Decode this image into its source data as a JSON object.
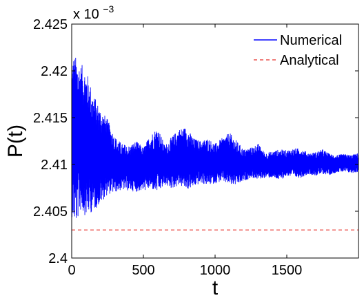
{
  "chart_data": {
    "type": "line",
    "title": "",
    "xlabel": "t",
    "ylabel": "P(t)",
    "xlim": [
      0,
      2000
    ],
    "ylim": [
      2.4,
      2.425
    ],
    "x_ticks": [
      0,
      500,
      1000,
      1500
    ],
    "y_ticks": [
      2.4,
      2.405,
      2.41,
      2.415,
      2.42,
      2.425
    ],
    "y_tick_labels": [
      "2.4",
      "2.405",
      "2.41",
      "2.415",
      "2.42",
      "2.425"
    ],
    "y_scale_prefix": "x 10",
    "y_scale_exponent": "−3",
    "grid": false,
    "legend_position": "top-right",
    "series": [
      {
        "name": "Numerical",
        "color": "#0000ff",
        "style": "solid",
        "mean": 2.4097,
        "envelope": {
          "t": [
            0,
            10,
            30,
            60,
            100,
            150,
            200,
            250,
            300,
            350,
            400,
            450,
            500,
            550,
            600,
            650,
            700,
            750,
            800,
            850,
            900,
            950,
            1000,
            1050,
            1100,
            1150,
            1200,
            1250,
            1300,
            1350,
            1400,
            1450,
            1500,
            1550,
            1600,
            1650,
            1700,
            1750,
            1800,
            1850,
            1900,
            1950,
            2000
          ],
          "upper": [
            2.4205,
            2.4218,
            2.4215,
            2.4208,
            2.4202,
            2.4175,
            2.416,
            2.4148,
            2.413,
            2.4122,
            2.412,
            2.4125,
            2.4118,
            2.4132,
            2.414,
            2.412,
            2.413,
            2.4138,
            2.414,
            2.4128,
            2.4125,
            2.4128,
            2.4122,
            2.4128,
            2.4134,
            2.4125,
            2.4116,
            2.4118,
            2.4122,
            2.4112,
            2.4114,
            2.4116,
            2.4115,
            2.4117,
            2.4117,
            2.4112,
            2.4113,
            2.4116,
            2.4111,
            2.411,
            2.4111,
            2.411,
            2.4112
          ],
          "lower": [
            2.4045,
            2.404,
            2.4035,
            2.405,
            2.4045,
            2.405,
            2.4058,
            2.4068,
            2.407,
            2.4073,
            2.4072,
            2.4071,
            2.4072,
            2.4074,
            2.407,
            2.4078,
            2.4074,
            2.4078,
            2.4073,
            2.4076,
            2.408,
            2.4078,
            2.408,
            2.4082,
            2.4078,
            2.4078,
            2.4082,
            2.4086,
            2.4084,
            2.4086,
            2.4086,
            2.4083,
            2.4088,
            2.4086,
            2.4086,
            2.409,
            2.4088,
            2.409,
            2.4089,
            2.4092,
            2.4092,
            2.4091,
            2.4092
          ]
        }
      },
      {
        "name": "Analytical",
        "color": "#e8312a",
        "style": "dashed",
        "value": 2.403
      }
    ]
  }
}
